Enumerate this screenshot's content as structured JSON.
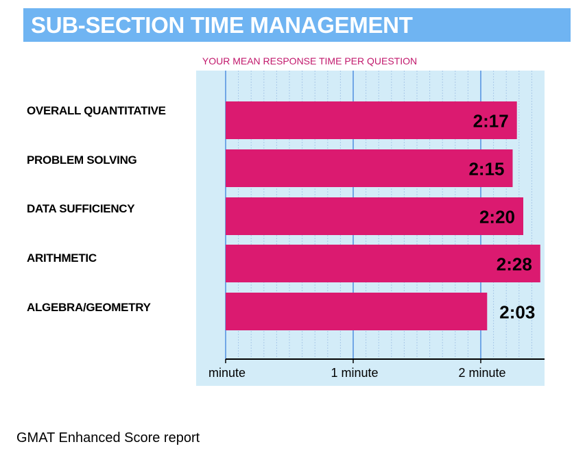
{
  "header": {
    "title": "SUB-SECTION TIME MANAGEMENT"
  },
  "footer": {
    "text": "GMAT Enhanced Score report"
  },
  "colors": {
    "header_bg": "#6fb4f2",
    "plot_bg": "#d3ecf8",
    "bar": "#db1a70",
    "title_text": "#c1176b",
    "major_grid": "#4f8fe0",
    "minor_grid": "#a9c8e8"
  },
  "chart_data": {
    "type": "bar",
    "orientation": "horizontal",
    "title": "YOUR MEAN RESPONSE TIME PER QUESTION",
    "categories": [
      "OVERALL QUANTITATIVE",
      "PROBLEM SOLVING",
      "DATA SUFFICIENCY",
      "ARITHMETIC",
      "ALGEBRA/GEOMETRY"
    ],
    "values_seconds": [
      137,
      135,
      140,
      148,
      123
    ],
    "value_labels": [
      "2:17",
      "2:15",
      "2:20",
      "2:28",
      "2:03"
    ],
    "xlim_seconds": [
      0,
      150
    ],
    "xticks": [
      {
        "value": 0,
        "label": "minute"
      },
      {
        "value": 60,
        "label": "1 minute"
      },
      {
        "value": 120,
        "label": "2 minute"
      }
    ],
    "minor_grid_step_seconds": 6,
    "grid": true,
    "legend": "none"
  }
}
